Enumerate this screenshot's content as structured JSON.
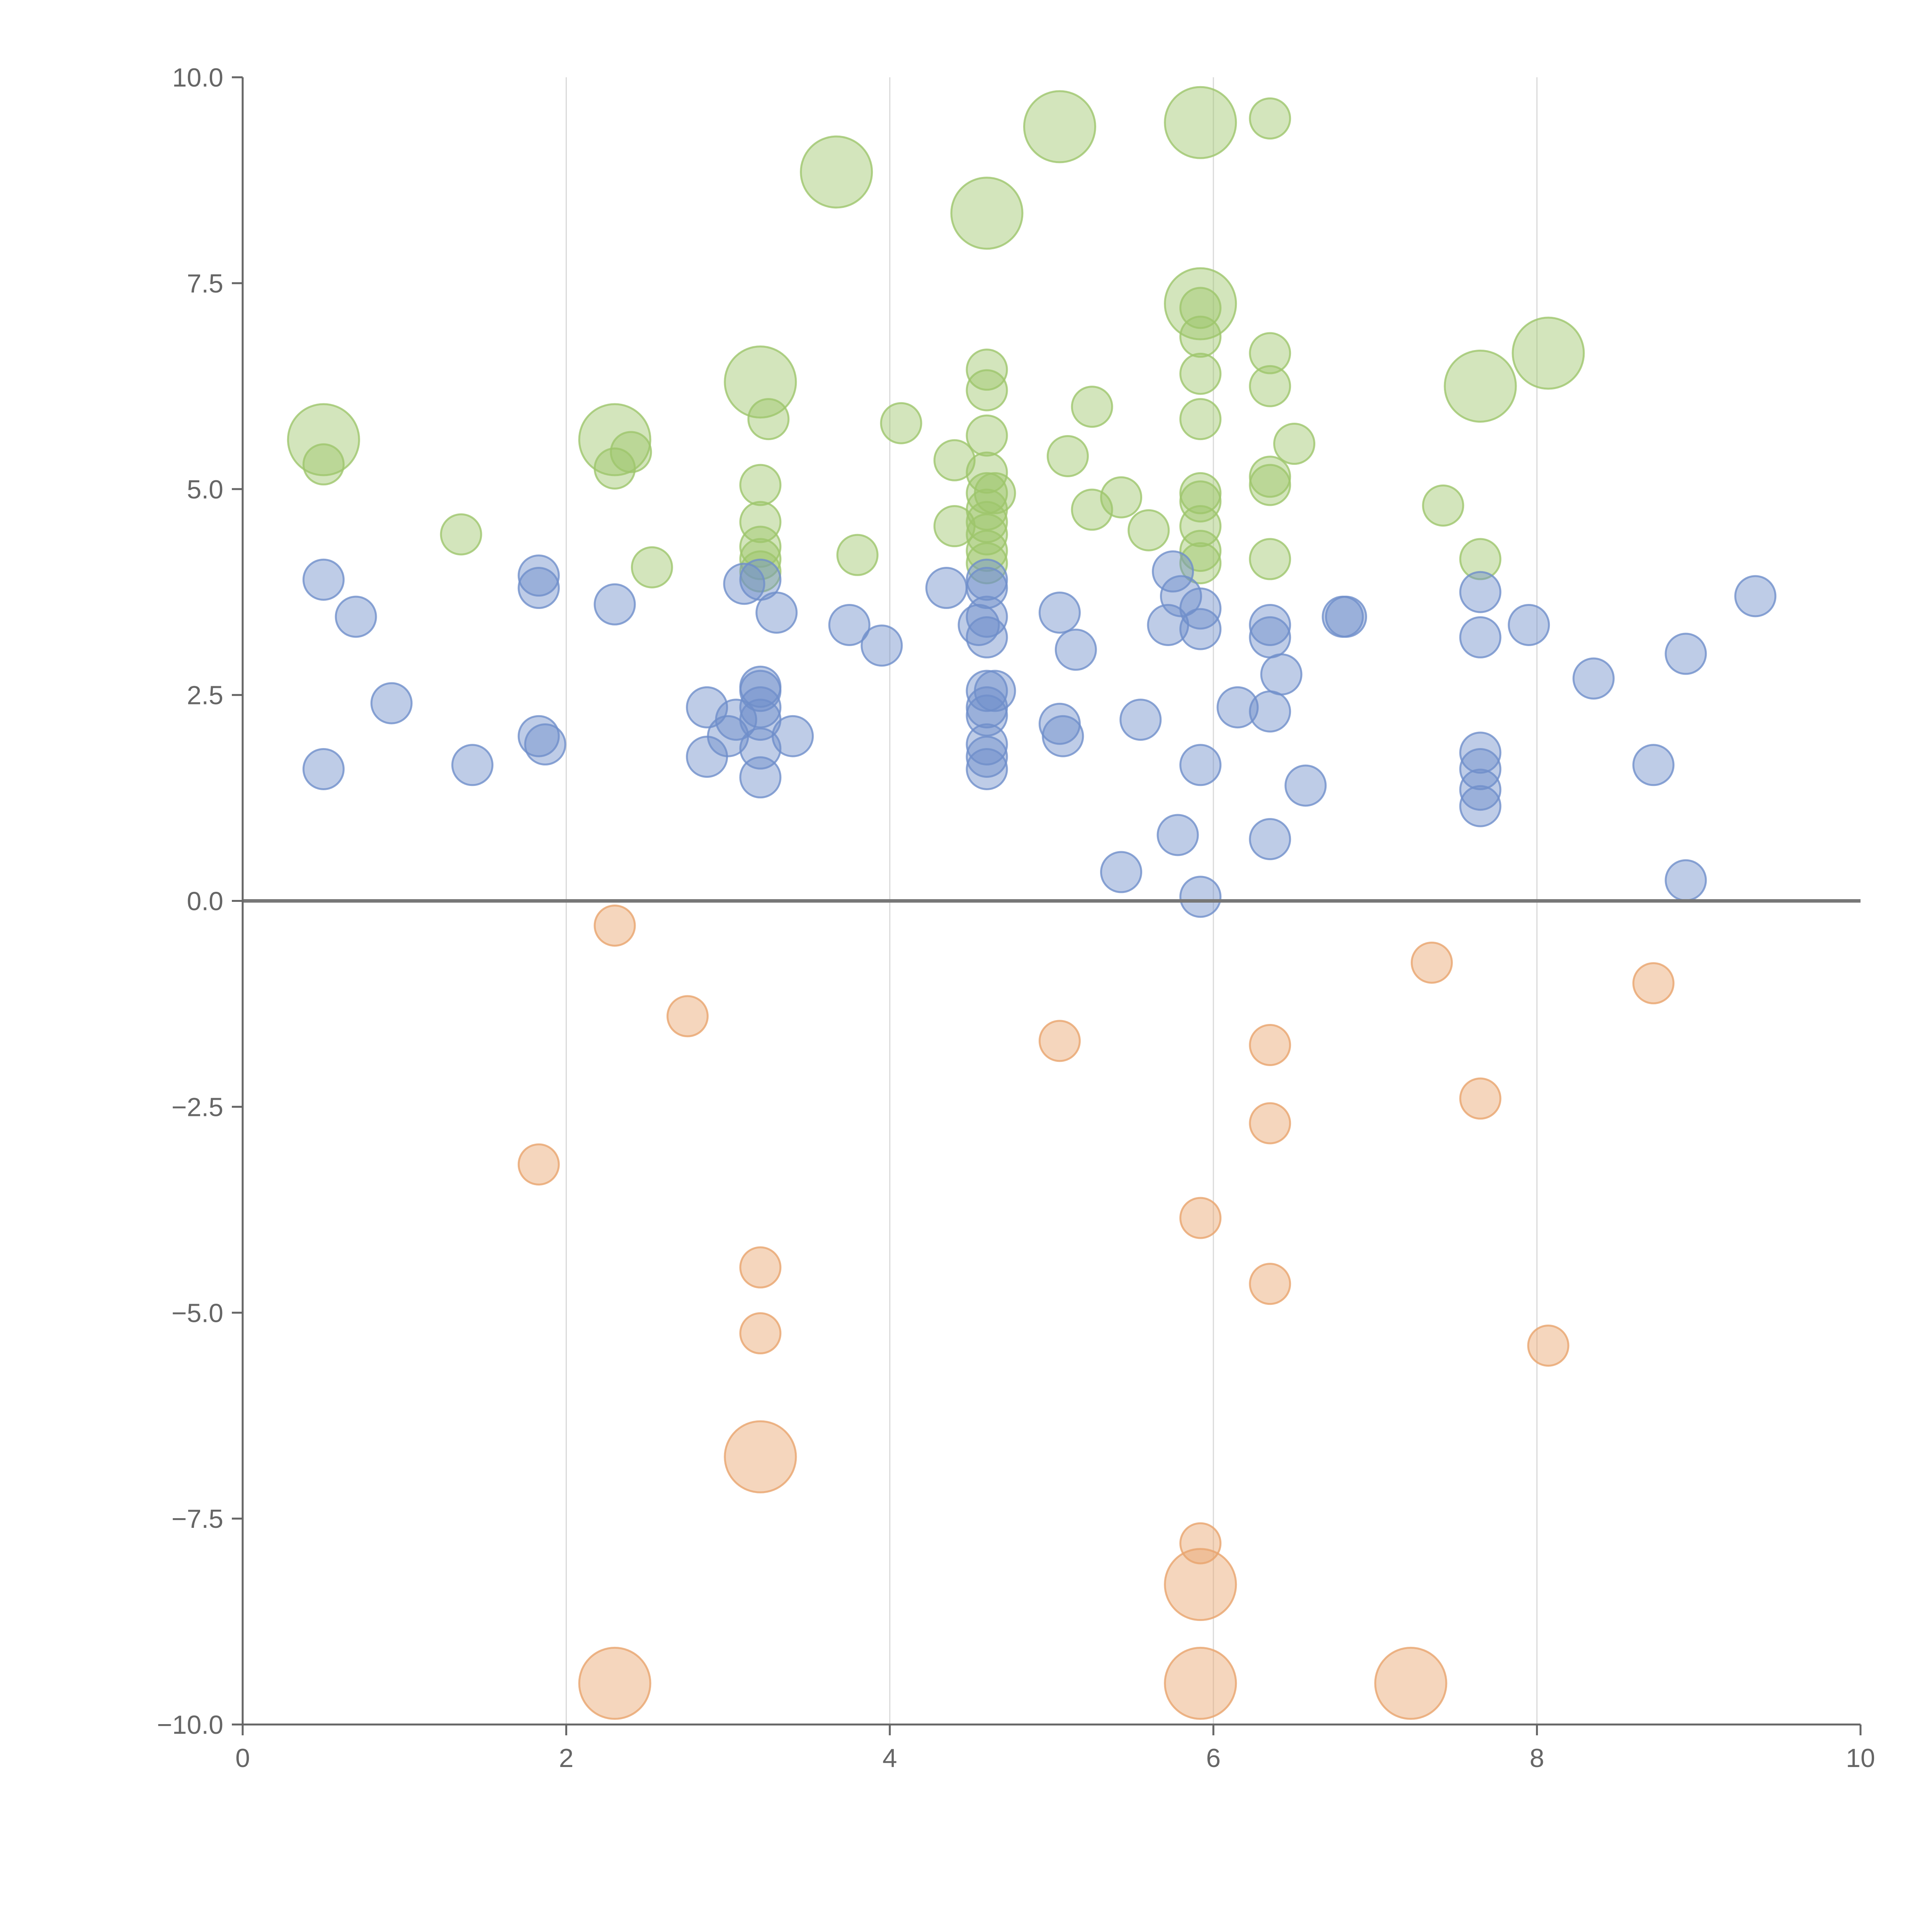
{
  "chart_data": {
    "type": "scatter",
    "title": "",
    "xlabel": "",
    "ylabel": "",
    "xlim": [
      0,
      10
    ],
    "ylim": [
      -10,
      10
    ],
    "x_ticks": [
      "0",
      "2",
      "4",
      "6",
      "8",
      "10"
    ],
    "y_ticks": [
      "10.0",
      "7.5",
      "5.0",
      "2.5",
      "0.0",
      "−2.5",
      "−5.0",
      "−7.5",
      "−10.0"
    ],
    "y_tick_values": [
      10,
      7.5,
      5,
      2.5,
      0,
      -2.5,
      -5,
      -7.5,
      -10
    ],
    "x_tick_values": [
      0,
      2,
      4,
      6,
      8,
      10
    ],
    "grid": "vertical",
    "colors": {
      "positive_large": "#9dc56b",
      "positive_small": "#6f8fca",
      "negative": "#e8a46d",
      "axis": "#666666",
      "grid": "#d9d9d9",
      "zero_line": "#777777"
    },
    "series": [
      {
        "name": "green",
        "color": "#9dc56b",
        "points": [
          [
            0.5,
            5.6,
            3
          ],
          [
            0.5,
            5.3,
            1
          ],
          [
            1.35,
            4.45,
            1
          ],
          [
            2.3,
            5.6,
            3
          ],
          [
            2.3,
            5.25,
            1
          ],
          [
            2.4,
            5.45,
            1
          ],
          [
            2.53,
            4.05,
            1
          ],
          [
            3.2,
            6.3,
            3
          ],
          [
            3.25,
            5.85,
            1
          ],
          [
            3.2,
            5.05,
            1
          ],
          [
            3.2,
            4.6,
            1
          ],
          [
            3.2,
            4.3,
            1
          ],
          [
            3.2,
            4.15,
            1
          ],
          [
            3.2,
            4.0,
            1
          ],
          [
            3.67,
            8.85,
            3
          ],
          [
            3.8,
            4.2,
            1
          ],
          [
            4.07,
            5.8,
            1
          ],
          [
            4.4,
            5.35,
            1
          ],
          [
            4.4,
            4.55,
            1
          ],
          [
            4.6,
            8.35,
            3
          ],
          [
            4.6,
            6.45,
            1
          ],
          [
            4.6,
            6.2,
            1
          ],
          [
            4.6,
            5.65,
            1
          ],
          [
            4.6,
            5.2,
            1
          ],
          [
            4.6,
            4.95,
            1
          ],
          [
            4.65,
            4.95,
            1
          ],
          [
            4.6,
            4.75,
            1
          ],
          [
            4.6,
            4.6,
            1
          ],
          [
            4.6,
            4.45,
            1
          ],
          [
            4.6,
            4.25,
            1
          ],
          [
            4.6,
            4.1,
            1
          ],
          [
            5.05,
            9.4,
            3
          ],
          [
            5.1,
            5.4,
            1
          ],
          [
            5.25,
            6.0,
            1
          ],
          [
            5.25,
            4.75,
            1
          ],
          [
            5.43,
            4.9,
            1
          ],
          [
            5.6,
            4.5,
            1
          ],
          [
            5.92,
            9.45,
            3
          ],
          [
            5.92,
            7.25,
            3
          ],
          [
            5.92,
            7.2,
            1
          ],
          [
            5.92,
            6.85,
            1
          ],
          [
            5.92,
            6.4,
            1
          ],
          [
            5.92,
            5.85,
            1
          ],
          [
            5.92,
            4.95,
            1
          ],
          [
            5.92,
            4.85,
            1
          ],
          [
            5.92,
            4.55,
            1
          ],
          [
            5.92,
            4.25,
            1
          ],
          [
            5.92,
            4.1,
            1
          ],
          [
            6.35,
            9.5,
            1
          ],
          [
            6.35,
            6.65,
            1
          ],
          [
            6.35,
            6.25,
            1
          ],
          [
            6.35,
            5.15,
            1
          ],
          [
            6.35,
            5.05,
            1
          ],
          [
            6.35,
            4.15,
            1
          ],
          [
            6.5,
            5.55,
            1
          ],
          [
            7.42,
            4.8,
            1
          ],
          [
            7.65,
            6.25,
            3
          ],
          [
            7.65,
            4.15,
            1
          ],
          [
            8.07,
            6.65,
            3
          ]
        ]
      },
      {
        "name": "blue",
        "color": "#6f8fca",
        "points": [
          [
            0.5,
            3.9,
            1
          ],
          [
            0.5,
            1.6,
            1
          ],
          [
            0.7,
            3.45,
            1
          ],
          [
            0.92,
            2.4,
            1
          ],
          [
            1.42,
            1.65,
            1
          ],
          [
            1.83,
            3.95,
            1
          ],
          [
            1.83,
            3.8,
            1
          ],
          [
            1.83,
            2.0,
            1
          ],
          [
            1.87,
            1.9,
            1
          ],
          [
            2.3,
            3.6,
            1
          ],
          [
            2.87,
            2.35,
            1
          ],
          [
            2.87,
            1.75,
            1
          ],
          [
            3.0,
            2.0,
            1
          ],
          [
            3.05,
            2.2,
            1
          ],
          [
            3.1,
            3.85,
            1
          ],
          [
            3.2,
            3.9,
            1
          ],
          [
            3.2,
            2.6,
            1
          ],
          [
            3.2,
            2.55,
            1
          ],
          [
            3.2,
            2.35,
            1
          ],
          [
            3.2,
            2.2,
            1
          ],
          [
            3.2,
            1.85,
            1
          ],
          [
            3.2,
            1.5,
            1
          ],
          [
            3.3,
            3.5,
            1
          ],
          [
            3.4,
            2.0,
            1
          ],
          [
            3.75,
            3.35,
            1
          ],
          [
            3.95,
            3.1,
            1
          ],
          [
            4.35,
            3.8,
            1
          ],
          [
            4.55,
            3.35,
            1
          ],
          [
            4.6,
            3.9,
            1
          ],
          [
            4.6,
            3.8,
            1
          ],
          [
            4.6,
            3.45,
            1
          ],
          [
            4.6,
            3.2,
            1
          ],
          [
            4.6,
            2.55,
            1
          ],
          [
            4.65,
            2.55,
            1
          ],
          [
            4.6,
            2.35,
            1
          ],
          [
            4.6,
            2.25,
            1
          ],
          [
            4.6,
            1.9,
            1
          ],
          [
            4.6,
            1.75,
            1
          ],
          [
            4.6,
            1.6,
            1
          ],
          [
            5.05,
            3.5,
            1
          ],
          [
            5.05,
            2.15,
            1
          ],
          [
            5.07,
            2.0,
            1
          ],
          [
            5.15,
            3.05,
            1
          ],
          [
            5.43,
            0.35,
            1
          ],
          [
            5.55,
            2.2,
            1
          ],
          [
            5.75,
            4.0,
            1
          ],
          [
            5.72,
            3.35,
            1
          ],
          [
            5.8,
            3.7,
            1
          ],
          [
            5.78,
            0.8,
            1
          ],
          [
            5.92,
            3.55,
            1
          ],
          [
            5.92,
            3.3,
            1
          ],
          [
            5.92,
            1.65,
            1
          ],
          [
            5.92,
            0.05,
            1
          ],
          [
            6.15,
            2.35,
            1
          ],
          [
            6.35,
            3.35,
            1
          ],
          [
            6.35,
            3.2,
            1
          ],
          [
            6.35,
            2.3,
            1
          ],
          [
            6.35,
            0.75,
            1
          ],
          [
            6.42,
            2.75,
            1
          ],
          [
            6.57,
            1.4,
            1
          ],
          [
            6.8,
            3.45,
            1
          ],
          [
            6.82,
            3.45,
            1
          ],
          [
            7.65,
            3.75,
            1
          ],
          [
            7.65,
            3.2,
            1
          ],
          [
            7.65,
            1.8,
            1
          ],
          [
            7.65,
            1.6,
            1
          ],
          [
            7.65,
            1.35,
            1
          ],
          [
            7.65,
            1.15,
            1
          ],
          [
            7.95,
            3.35,
            1
          ],
          [
            8.35,
            2.7,
            1
          ],
          [
            8.72,
            1.65,
            1
          ],
          [
            8.92,
            3.0,
            1
          ],
          [
            8.92,
            0.25,
            1
          ],
          [
            9.35,
            3.7,
            1
          ]
        ]
      },
      {
        "name": "orange",
        "color": "#e8a46d",
        "points": [
          [
            1.83,
            -3.2,
            1
          ],
          [
            2.3,
            -0.3,
            1
          ],
          [
            2.3,
            -9.5,
            3
          ],
          [
            2.75,
            -1.4,
            1
          ],
          [
            3.2,
            -4.45,
            1
          ],
          [
            3.2,
            -5.25,
            1
          ],
          [
            3.2,
            -6.75,
            3
          ],
          [
            5.05,
            -1.7,
            1
          ],
          [
            5.92,
            -3.85,
            1
          ],
          [
            5.92,
            -7.8,
            1
          ],
          [
            5.92,
            -8.3,
            3
          ],
          [
            5.92,
            -9.5,
            3
          ],
          [
            6.35,
            -1.75,
            1
          ],
          [
            6.35,
            -2.7,
            1
          ],
          [
            6.35,
            -4.65,
            1
          ],
          [
            7.35,
            -0.75,
            1
          ],
          [
            7.65,
            -2.4,
            1
          ],
          [
            8.07,
            -5.4,
            1
          ],
          [
            8.72,
            -1.0,
            1
          ],
          [
            7.22,
            -9.5,
            3
          ]
        ]
      }
    ]
  }
}
